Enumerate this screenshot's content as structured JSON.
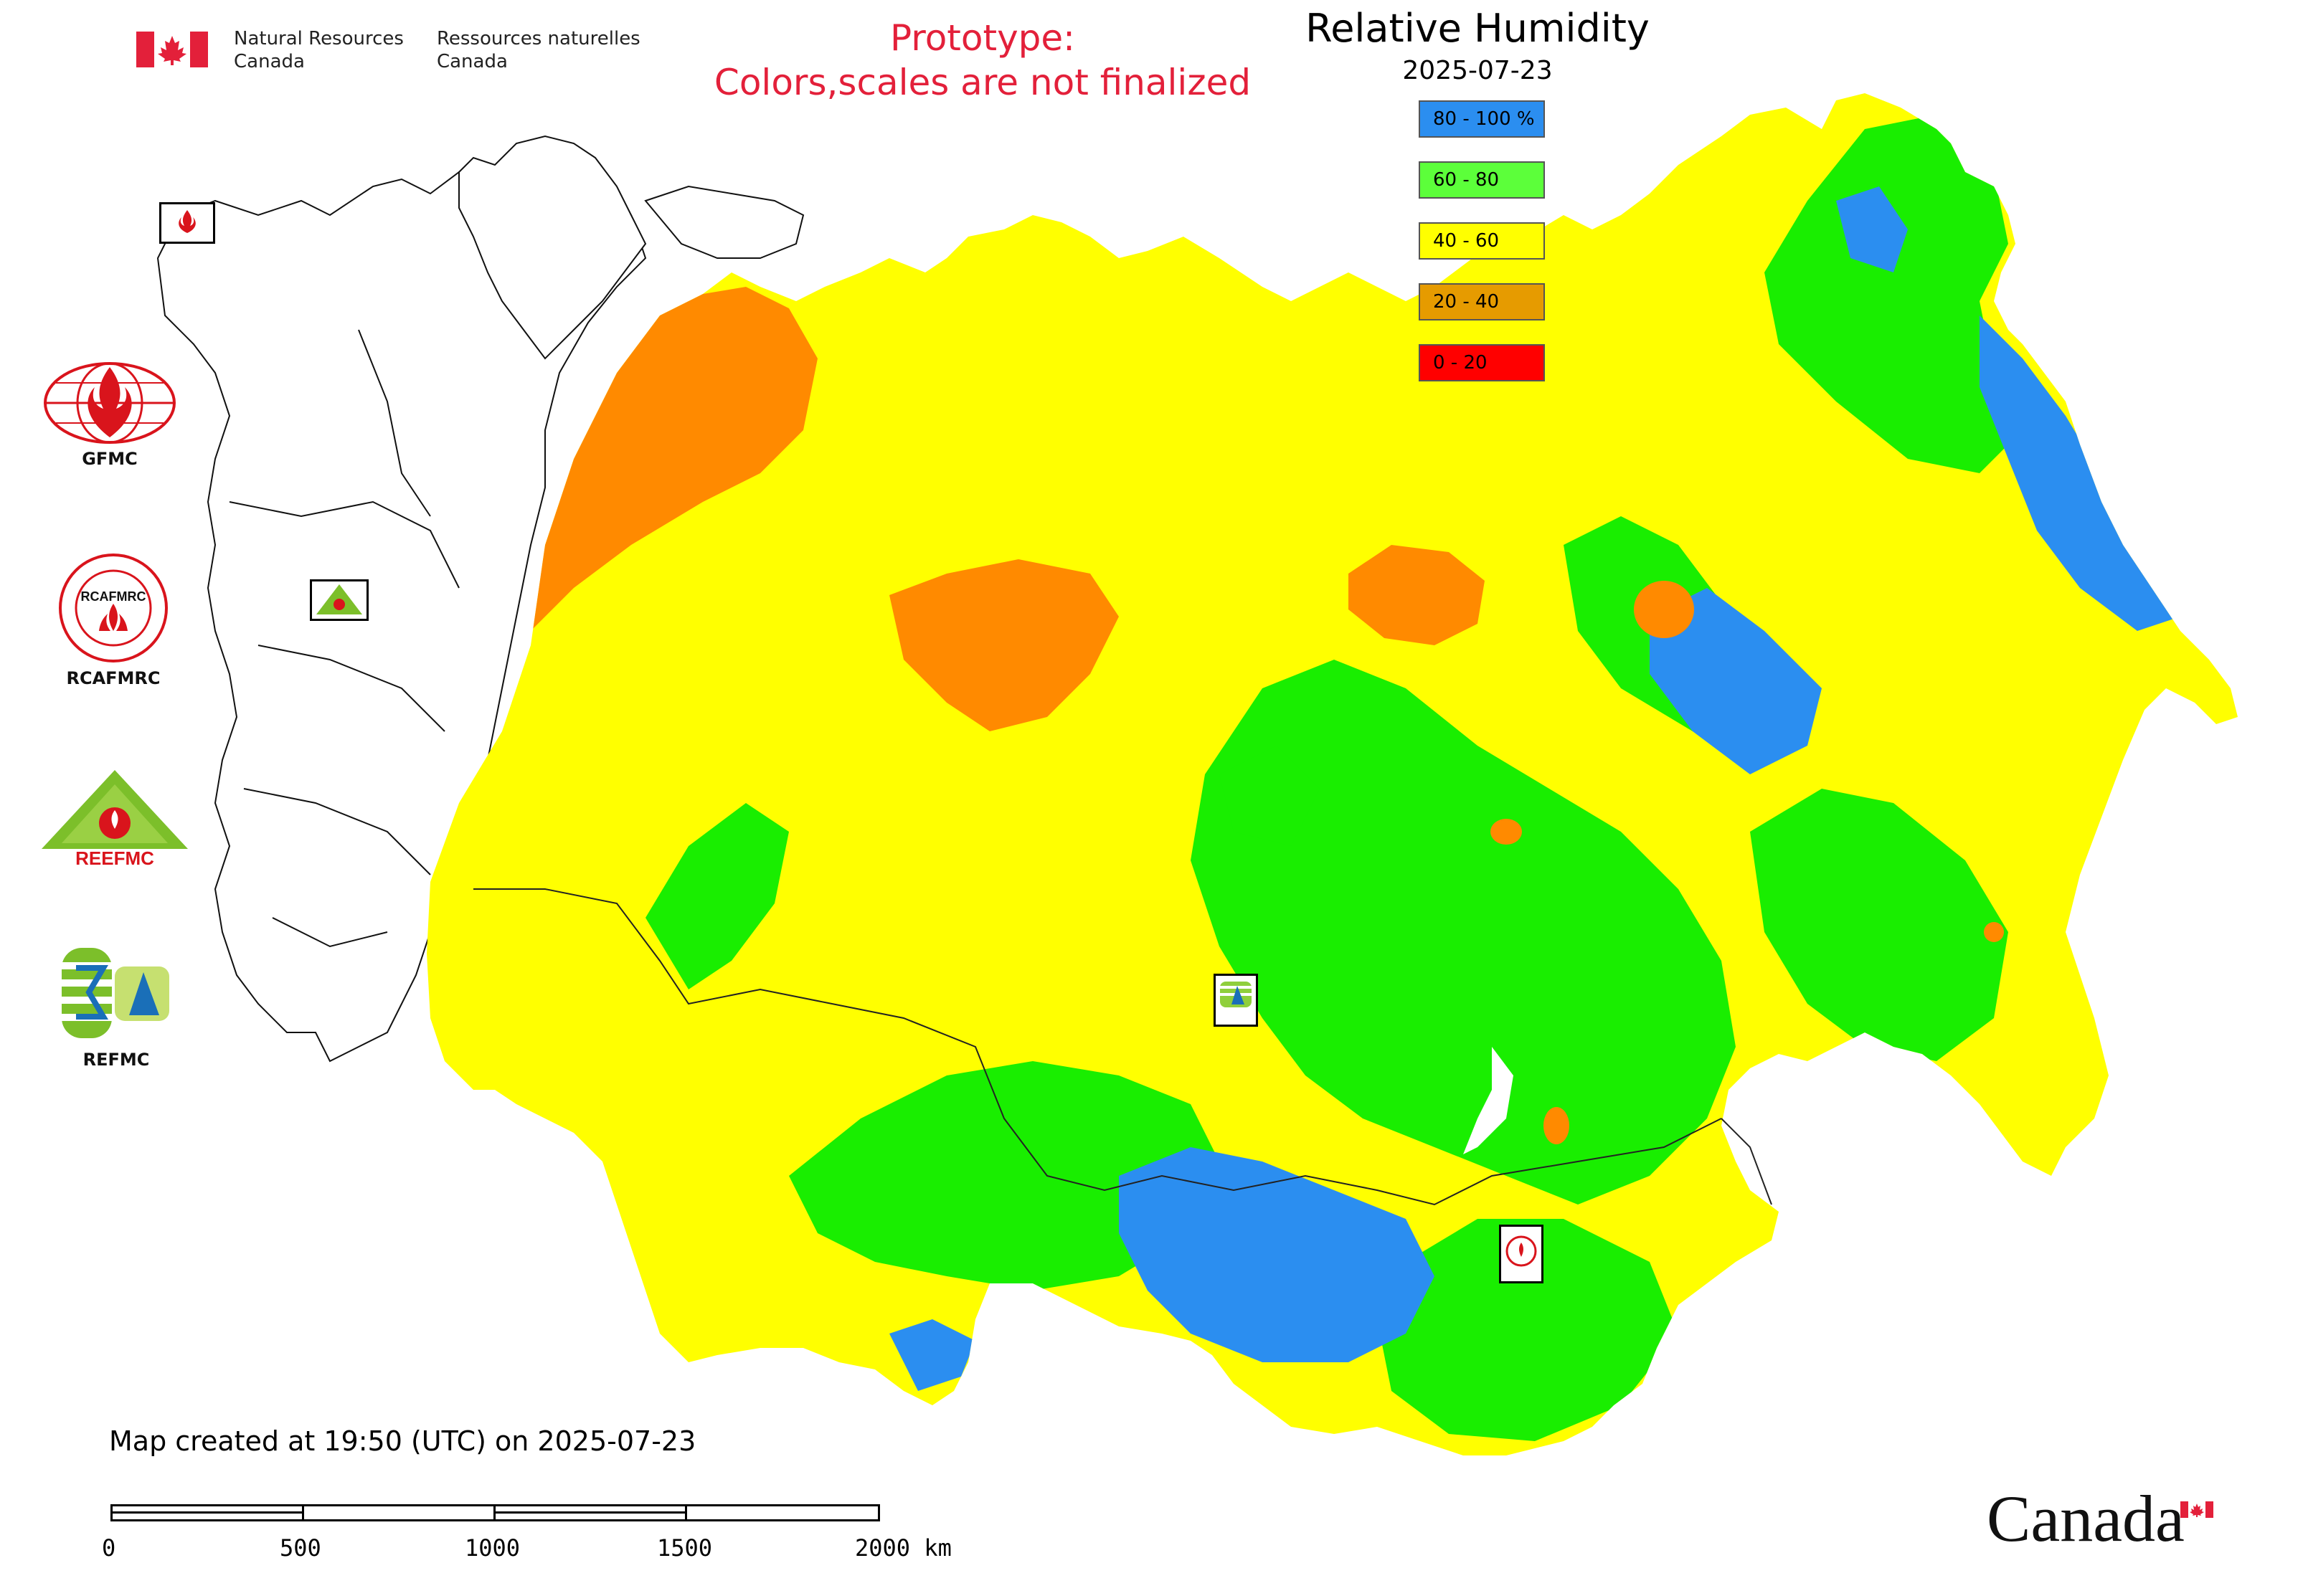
{
  "header": {
    "agency_en_line1": "Natural Resources",
    "agency_en_line2": "Canada",
    "agency_fr_line1": "Ressources naturelles",
    "agency_fr_line2": "Canada",
    "prototype_line1": "Prototype:",
    "prototype_line2": "Colors,scales are not finalized"
  },
  "map": {
    "title": "Relative Humidity",
    "date": "2025-07-23",
    "legend": [
      {
        "label": "80 - 100 %",
        "color": "#2b8ef0"
      },
      {
        "label": "60 - 80",
        "color": "#5cff3a"
      },
      {
        "label": "40 - 60",
        "color": "#ffff00"
      },
      {
        "label": "20 - 40",
        "color": "#e69b00"
      },
      {
        "label": "0 - 20",
        "color": "#ff0000"
      }
    ],
    "region_colors": {
      "blue": "#2b8ef0",
      "green": "#19ee00",
      "yellow": "#ffff00",
      "orange": "#ff8a00",
      "red": "#ff0000"
    }
  },
  "logos": {
    "gfmc": "GFMC",
    "rcafmrc": "RCAFMRC",
    "reefmc": "REEFMC",
    "refmc": "REFMC",
    "rcafmrc_ring_text": "RCAFMRC",
    "reefmc_word": "REEFMC"
  },
  "footer": {
    "created": "Map created at 19:50 (UTC) on 2025-07-23",
    "scale_labels": [
      "0",
      "500",
      "1000",
      "1500",
      "2000 km"
    ],
    "canada_wordmark": "Canada"
  }
}
